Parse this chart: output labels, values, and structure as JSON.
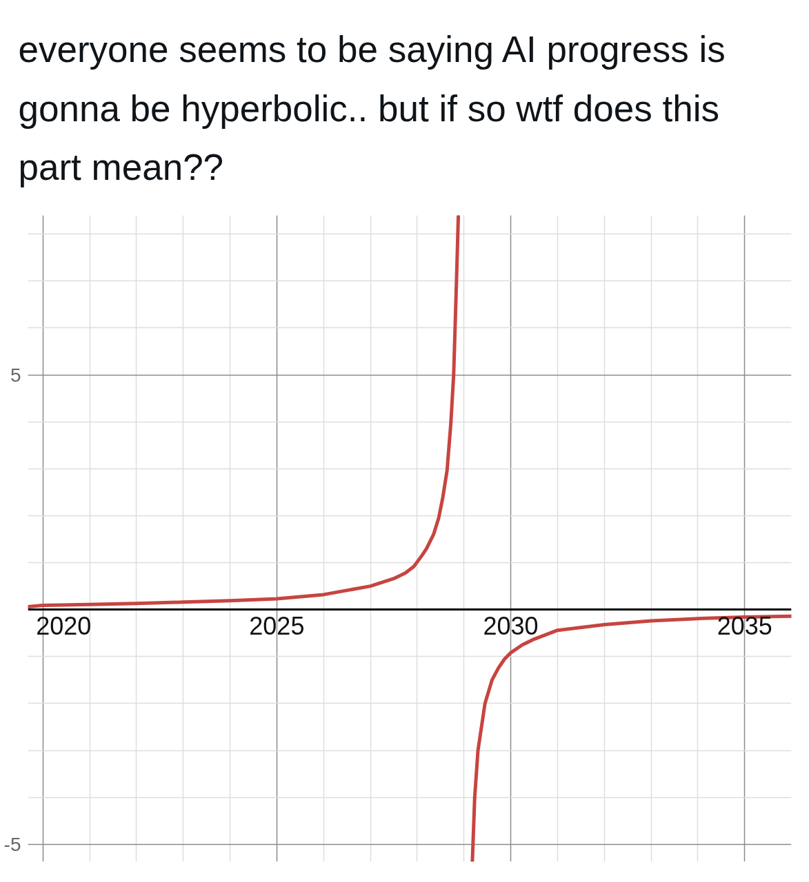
{
  "chart_data": {
    "type": "line",
    "title": "everyone seems to be saying AI progress is gonna be hyperbolic.. but if so wtf does this part mean??",
    "x": [
      2019.68,
      2020,
      2021,
      2022,
      2023,
      2024,
      2025,
      2026,
      2027,
      2027.5,
      2027.75,
      2027.93,
      2028.1,
      2028.2,
      2028.35,
      2028.46,
      2028.55,
      2028.64,
      2028.72,
      2028.78,
      2028.81,
      2028.84,
      2028.88,
      2029.0,
      2029.18,
      2029.23,
      2029.3,
      2029.45,
      2029.6,
      2029.74,
      2029.87,
      2030,
      2030.25,
      2030.5,
      2031,
      2032,
      2033,
      2034,
      2035,
      2036
    ],
    "values": [
      0.06,
      0.09,
      0.11,
      0.13,
      0.16,
      0.19,
      0.23,
      0.32,
      0.5,
      0.66,
      0.78,
      0.92,
      1.15,
      1.3,
      1.6,
      1.95,
      2.4,
      2.97,
      3.97,
      5,
      5.98,
      6.98,
      8.38,
      null,
      -5.36,
      -4,
      -3,
      -2,
      -1.5,
      -1.24,
      -1.05,
      -0.92,
      -0.75,
      -0.63,
      -0.44,
      -0.32,
      -0.24,
      -0.19,
      -0.16,
      -0.14
    ],
    "color": "#c74440",
    "xlim": [
      2019.68,
      2036
    ],
    "ylim": [
      -5.37,
      8.4
    ],
    "xticks": [
      2020,
      {
        "value": 2021,
        "label": null
      },
      {
        "value": 2022,
        "label": null
      },
      {
        "value": 2023,
        "label": null
      },
      {
        "value": 2024,
        "label": null
      },
      2025,
      {
        "value": 2026,
        "label": null
      },
      {
        "value": 2027,
        "label": null
      },
      {
        "value": 2028,
        "label": null
      },
      {
        "value": 2029,
        "label": null
      },
      2030,
      {
        "value": 2031,
        "label": null
      },
      {
        "value": 2032,
        "label": null
      },
      {
        "value": 2033,
        "label": null
      },
      {
        "value": 2034,
        "label": null
      },
      2035
    ],
    "yticks": [
      -5,
      {
        "value": -4,
        "label": null
      },
      {
        "value": -3,
        "label": null
      },
      {
        "value": -2,
        "label": null
      },
      {
        "value": -1,
        "label": null
      },
      {
        "value": 0,
        "label": null
      },
      {
        "value": 1,
        "label": null
      },
      {
        "value": 2,
        "label": null
      },
      {
        "value": 3,
        "label": null
      },
      {
        "value": 4,
        "label": null
      },
      5,
      {
        "value": 6,
        "label": null
      },
      {
        "value": 7,
        "label": null
      },
      {
        "value": 8,
        "label": null
      }
    ],
    "grid": true
  }
}
